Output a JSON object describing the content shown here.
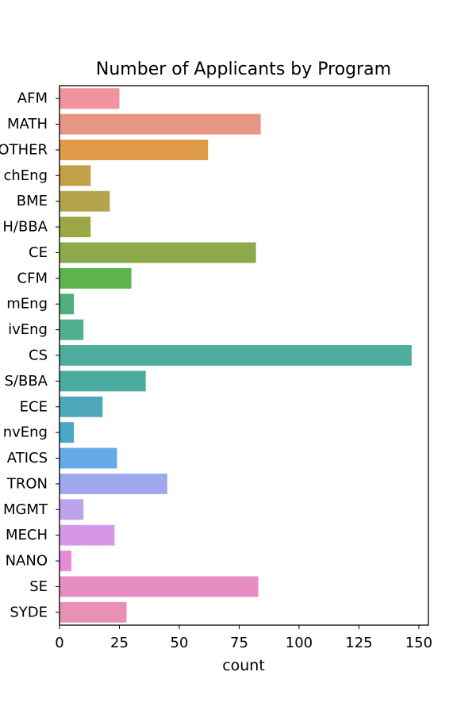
{
  "chart_data": {
    "type": "bar",
    "orientation": "horizontal",
    "title": "Number of Applicants by Program",
    "xlabel": "count",
    "ylabel": "",
    "xlim": [
      0,
      154
    ],
    "xticks": [
      0,
      25,
      50,
      75,
      100,
      125,
      150
    ],
    "grid": false,
    "categories": [
      "AFM",
      "MATH",
      "OTHER",
      "chEng",
      "BME",
      "H/BBA",
      "CE",
      "CFM",
      "mEng",
      "ivEng",
      "CS",
      "S/BBA",
      "ECE",
      "nvEng",
      "ATICS",
      "TRON",
      "MGMT",
      "MECH",
      "NANO",
      "SE",
      "SYDE"
    ],
    "values": [
      25,
      84,
      62,
      13,
      21,
      13,
      82,
      30,
      6,
      10,
      147,
      36,
      18,
      6,
      24,
      45,
      10,
      23,
      5,
      83,
      28
    ],
    "colors": [
      "#f0939c",
      "#e89684",
      "#de9a48",
      "#c2a048",
      "#b3a34b",
      "#9ba845",
      "#8ca94c",
      "#5db44f",
      "#4fae7e",
      "#51ae8f",
      "#4fad9e",
      "#4bab9f",
      "#4ea8b9",
      "#4aa6c6",
      "#63aae6",
      "#9fa7ee",
      "#bea3ec",
      "#d597e6",
      "#e78ad8",
      "#e88cc4",
      "#e991b3"
    ]
  }
}
